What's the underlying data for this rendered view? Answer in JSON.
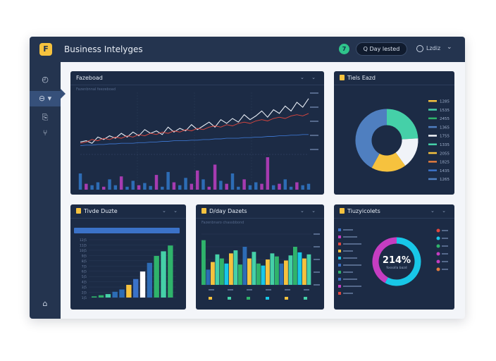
{
  "app": {
    "title": "Business Intelyges",
    "logo_glyph": "F"
  },
  "topbar": {
    "status_glyph": "7",
    "range_button_label": "Q Day lested",
    "user_label": "Lzdiz",
    "chevron": "⌄"
  },
  "sidebar": {
    "items": [
      {
        "name": "dashboard",
        "glyph": "◴"
      },
      {
        "name": "analytics",
        "glyph": "⊖ ▾"
      },
      {
        "name": "reports",
        "glyph": "⎘"
      },
      {
        "name": "filters",
        "glyph": "⑂"
      },
      {
        "name": "home",
        "glyph": "⌂"
      }
    ]
  },
  "panel_controls": "⌄ ⌄",
  "panels": {
    "main": {
      "title": "Fazeboad",
      "subtitle": "Fazenbnnal feezeboad"
    },
    "donut": {
      "title": "Tiels Eazd"
    },
    "bars": {
      "title": "Tivde Duzte"
    },
    "mixed": {
      "title": "D/day Dazets",
      "subtitle": "Fazenbnaro chassbbond"
    },
    "ring": {
      "title": "Tiuzyicolets",
      "center_value": "214%",
      "center_sub": "fossolla bazd"
    }
  },
  "colors": {
    "line_white": "#e8edf5",
    "line_red": "#e0473e",
    "line_blue": "#3b72c8",
    "bar_blue": "#2d6cb5",
    "bar_purple": "#a63bb0",
    "teal": "#45d0a8",
    "green": "#2fb36b",
    "yellow": "#f6c23e",
    "cyan": "#18c7e8",
    "magenta": "#c53dc1"
  },
  "chart_data": [
    {
      "type": "line",
      "title": "Fazeboad",
      "x": [
        1,
        2,
        3,
        4,
        5,
        6,
        7,
        8,
        9,
        10,
        11,
        12,
        13,
        14,
        15,
        16,
        17,
        18,
        19,
        20,
        21,
        22,
        23,
        24,
        25,
        26,
        27,
        28,
        29,
        30,
        31,
        32,
        33,
        34,
        35,
        36,
        37,
        38,
        39,
        40
      ],
      "series": [
        {
          "values": [
            20,
            22,
            18,
            28,
            24,
            30,
            26,
            34,
            28,
            36,
            30,
            40,
            34,
            38,
            32,
            44,
            36,
            42,
            38,
            48,
            40,
            46,
            52,
            44,
            56,
            50,
            58,
            52,
            64,
            56,
            62,
            70,
            60,
            72,
            66,
            78,
            70,
            84,
            76,
            90
          ]
        },
        {
          "values": [
            18,
            20,
            24,
            22,
            26,
            24,
            28,
            26,
            30,
            28,
            32,
            30,
            34,
            32,
            36,
            34,
            38,
            36,
            40,
            38,
            42,
            40,
            44,
            46,
            44,
            48,
            46,
            50,
            52,
            50,
            54,
            56,
            54,
            58,
            60,
            58,
            62,
            64,
            62,
            66
          ]
        },
        {
          "values": [
            14,
            15,
            15,
            16,
            16,
            17,
            17,
            18,
            18,
            18,
            19,
            19,
            20,
            20,
            21,
            21,
            22,
            22,
            22,
            23,
            23,
            24,
            24,
            25,
            25,
            26,
            26,
            26,
            27,
            27,
            28,
            28,
            29,
            29,
            30,
            30,
            31,
            31,
            32,
            32
          ]
        }
      ],
      "bars": [
        22,
        8,
        6,
        10,
        4,
        14,
        6,
        18,
        4,
        12,
        6,
        9,
        5,
        20,
        4,
        24,
        10,
        6,
        16,
        8,
        26,
        14,
        4,
        34,
        12,
        8,
        22,
        4,
        14,
        6,
        10,
        8,
        44,
        6,
        8,
        14,
        4,
        10,
        6,
        8
      ],
      "ylim": [
        0,
        100
      ]
    },
    {
      "type": "pie",
      "title": "Tiels Eazd",
      "slices": [
        {
          "value": 24,
          "color": "#45d0a8"
        },
        {
          "value": 16,
          "color": "#f0f3f8"
        },
        {
          "value": 18,
          "color": "#f6c23e"
        },
        {
          "value": 42,
          "color": "#4f7fc0"
        }
      ],
      "legend_values": [
        "1285",
        "1535",
        "2455",
        "1365",
        "1755",
        "1335",
        "2055",
        "1825",
        "1435",
        "1265"
      ]
    },
    {
      "type": "bar",
      "title": "Tivde Duzte",
      "tick_labels": [
        "12|5",
        "11|5",
        "10|5",
        "9|5",
        "8|5",
        "7|5",
        "6|5",
        "5|5",
        "4|5",
        "3|5",
        "2|5",
        "1|5"
      ],
      "values": [
        2,
        4,
        6,
        10,
        14,
        22,
        32,
        45,
        60,
        72,
        80,
        90
      ],
      "ylim": [
        0,
        100
      ]
    },
    {
      "type": "bar",
      "title": "D/day Dazets",
      "values": [
        88,
        30,
        45,
        60,
        52,
        42,
        62,
        68,
        40,
        75,
        52,
        65,
        42,
        38,
        50,
        62,
        56,
        42,
        48,
        58,
        75,
        64,
        52,
        60
      ],
      "ylim": [
        0,
        100
      ]
    },
    {
      "type": "pie",
      "title": "Tiuzyicolets",
      "slices": [
        {
          "value": 58,
          "color": "#18c7e8"
        },
        {
          "value": 42,
          "color": "#c53dc1"
        }
      ],
      "center_value": "214%"
    }
  ]
}
